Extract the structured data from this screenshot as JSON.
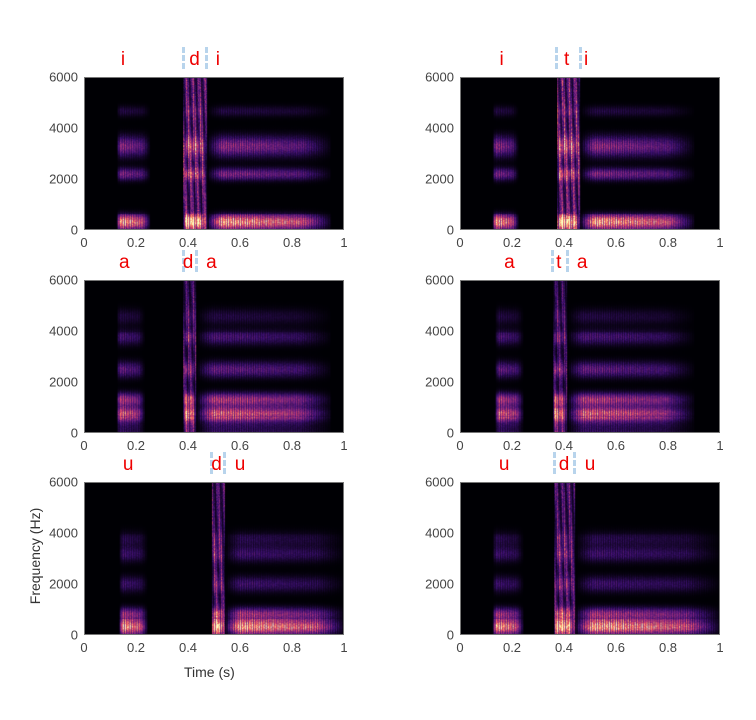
{
  "chart_data": {
    "type": "heatmap",
    "subtype": "spectrogram",
    "xlabel": "Time (s)",
    "ylabel": "Frequency (Hz)",
    "xlim": [
      0,
      1
    ],
    "ylim": [
      0,
      6000
    ],
    "xticks": [
      "0",
      "0.2",
      "0.4",
      "0.6",
      "0.8",
      "1"
    ],
    "yticks": [
      "0",
      "2000",
      "4000",
      "6000"
    ],
    "colormap": [
      "#000004",
      "#3b0f70",
      "#8c2981",
      "#de4968",
      "#fe9f6d",
      "#fcfdbf"
    ],
    "formants": {
      "i": [
        [
          300,
          1.0,
          260
        ],
        [
          2200,
          0.55,
          230
        ],
        [
          3300,
          0.6,
          380
        ],
        [
          4700,
          0.25,
          200
        ]
      ],
      "a": [
        [
          750,
          0.95,
          260
        ],
        [
          1300,
          0.75,
          260
        ],
        [
          2500,
          0.45,
          300
        ],
        [
          3800,
          0.35,
          300
        ],
        [
          4600,
          0.25,
          300
        ]
      ],
      "u": [
        [
          300,
          1.0,
          250
        ],
        [
          800,
          0.7,
          250
        ],
        [
          2000,
          0.3,
          300
        ],
        [
          3200,
          0.3,
          300
        ],
        [
          3800,
          0.2,
          300
        ]
      ]
    },
    "panels": [
      {
        "name": "idi",
        "labels": [
          {
            "text": "i",
            "t": 0.15
          },
          {
            "text": "d",
            "t": 0.425
          },
          {
            "text": "i",
            "t": 0.515
          }
        ],
        "boundaries": [
          0.38,
          0.47
        ],
        "segments": [
          {
            "v": "i",
            "t": [
              0.12,
              0.25
            ],
            "burst": 0
          },
          {
            "v": "i",
            "t": [
              0.38,
              0.47
            ],
            "burst": 0.75
          },
          {
            "v": "i",
            "t": [
              0.47,
              0.95
            ],
            "burst": 0
          }
        ]
      },
      {
        "name": "iti",
        "labels": [
          {
            "text": "i",
            "t": 0.16
          },
          {
            "text": "t",
            "t": 0.41
          },
          {
            "text": "i",
            "t": 0.485
          }
        ],
        "boundaries": [
          0.37,
          0.46
        ],
        "segments": [
          {
            "v": "i",
            "t": [
              0.12,
              0.22
            ],
            "burst": 0
          },
          {
            "v": "i",
            "t": [
              0.37,
              0.46
            ],
            "burst": 0.8
          },
          {
            "v": "i",
            "t": [
              0.46,
              0.9
            ],
            "burst": 0
          }
        ]
      },
      {
        "name": "ada",
        "labels": [
          {
            "text": "a",
            "t": 0.155
          },
          {
            "text": "d",
            "t": 0.4
          },
          {
            "text": "a",
            "t": 0.49
          }
        ],
        "boundaries": [
          0.38,
          0.43
        ],
        "segments": [
          {
            "v": "a",
            "t": [
              0.12,
              0.23
            ],
            "burst": 0
          },
          {
            "v": "a",
            "t": [
              0.38,
              0.43
            ],
            "burst": 0.5
          },
          {
            "v": "a",
            "t": [
              0.43,
              0.95
            ],
            "burst": 0
          }
        ]
      },
      {
        "name": "ata",
        "labels": [
          {
            "text": "a",
            "t": 0.19
          },
          {
            "text": "t",
            "t": 0.38
          },
          {
            "text": "a",
            "t": 0.47
          }
        ],
        "boundaries": [
          0.355,
          0.41
        ],
        "segments": [
          {
            "v": "a",
            "t": [
              0.13,
              0.24
            ],
            "burst": 0
          },
          {
            "v": "a",
            "t": [
              0.355,
              0.41
            ],
            "burst": 0.45
          },
          {
            "v": "a",
            "t": [
              0.41,
              0.9
            ],
            "burst": 0
          }
        ]
      },
      {
        "name": "udu",
        "labels": [
          {
            "text": "u",
            "t": 0.17
          },
          {
            "text": "d",
            "t": 0.51
          },
          {
            "text": "u",
            "t": 0.6
          }
        ],
        "boundaries": [
          0.49,
          0.54
        ],
        "segments": [
          {
            "v": "u",
            "t": [
              0.13,
              0.24
            ],
            "burst": 0
          },
          {
            "v": "u",
            "t": [
              0.49,
              0.54
            ],
            "burst": 0.6
          },
          {
            "v": "u",
            "t": [
              0.54,
              1.0
            ],
            "burst": 0
          }
        ]
      },
      {
        "name": "udu-2",
        "labels": [
          {
            "text": "u",
            "t": 0.17
          },
          {
            "text": "d",
            "t": 0.4
          },
          {
            "text": "u",
            "t": 0.5
          }
        ],
        "boundaries": [
          0.36,
          0.44
        ],
        "segments": [
          {
            "v": "u",
            "t": [
              0.12,
              0.24
            ],
            "burst": 0
          },
          {
            "v": "u",
            "t": [
              0.36,
              0.44
            ],
            "burst": 0.6
          },
          {
            "v": "u",
            "t": [
              0.44,
              1.0
            ],
            "burst": 0
          }
        ]
      }
    ]
  }
}
